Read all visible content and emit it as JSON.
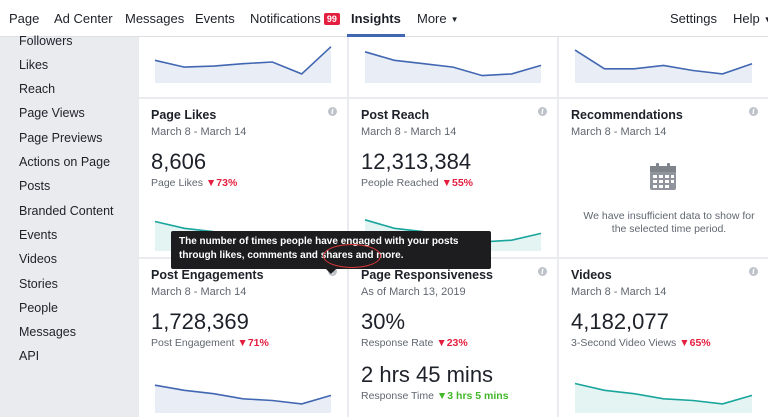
{
  "nav": {
    "items": [
      {
        "id": "page",
        "label": "Page"
      },
      {
        "id": "ad-center",
        "label": "Ad Center"
      },
      {
        "id": "messages",
        "label": "Messages"
      },
      {
        "id": "events",
        "label": "Events"
      },
      {
        "id": "notifications",
        "label": "Notifications",
        "badge": "99"
      },
      {
        "id": "insights",
        "label": "Insights",
        "active": true
      },
      {
        "id": "more",
        "label": "More"
      }
    ],
    "right": [
      {
        "id": "settings",
        "label": "Settings"
      },
      {
        "id": "help",
        "label": "Help"
      }
    ],
    "accent": "#4267b2"
  },
  "sidebar": {
    "items": [
      "Followers",
      "Likes",
      "Reach",
      "Page Views",
      "Page Previews",
      "Actions on Page",
      "Posts",
      "Branded Content",
      "Events",
      "Videos",
      "Stories",
      "People",
      "Messages",
      "API"
    ]
  },
  "cards": {
    "page_likes": {
      "title": "Page Likes",
      "date": "March 8 - March 14",
      "value": "8,606",
      "metric": "Page Likes",
      "change": "73%",
      "direction": "down"
    },
    "post_reach": {
      "title": "Post Reach",
      "date": "March 8 - March 14",
      "value": "12,313,384",
      "metric": "People Reached",
      "change": "55%",
      "direction": "down"
    },
    "recommendations": {
      "title": "Recommendations",
      "date": "March 8 - March 14",
      "message_line1": "We have insufficient data to show for",
      "message_line2": "the selected time period.",
      "icon": "calendar-icon"
    },
    "post_engagements": {
      "title": "Post Engagements",
      "date": "March 8 - March 14",
      "value": "1,728,369",
      "metric": "Post Engagement",
      "change": "71%",
      "direction": "down"
    },
    "page_responsiveness": {
      "title": "Page Responsiveness",
      "date": "As of March 13, 2019",
      "value": "30%",
      "metric": "Response Rate",
      "change": "23%",
      "direction": "down",
      "value2": "2 hrs 45 mins",
      "metric2": "Response Time",
      "change2": "3 hrs 5 mins",
      "direction2": "up"
    },
    "videos": {
      "title": "Videos",
      "date": "March 8 - March 14",
      "value": "4,182,077",
      "metric": "3-Second Video Views",
      "change": "65%",
      "direction": "down"
    }
  },
  "tooltip": {
    "line1": "The number of times people have engaged with your posts",
    "line2": "through likes, comments and shares and more."
  },
  "colors": {
    "blue_line": "#4267b2",
    "teal_line": "#19a59c",
    "down": "#e41e3f",
    "up": "#42b72a",
    "annotation": "#d93838"
  },
  "sparklines": {
    "top_left": [
      0.55,
      0.35,
      0.38,
      0.45,
      0.5,
      0.15,
      0.95
    ],
    "top_middle": [
      0.8,
      0.55,
      0.45,
      0.35,
      0.1,
      0.15,
      0.4
    ],
    "top_right": [
      0.85,
      0.3,
      0.3,
      0.4,
      0.25,
      0.15,
      0.45
    ],
    "page_likes": [
      0.75,
      0.55,
      0.45,
      0.3,
      0.25,
      0.15,
      0.4
    ],
    "post_reach": [
      0.8,
      0.55,
      0.45,
      0.35,
      0.15,
      0.2,
      0.4
    ],
    "post_engagements": [
      0.7,
      0.55,
      0.45,
      0.3,
      0.25,
      0.15,
      0.4
    ],
    "page_responsiveness": [],
    "videos": [
      0.75,
      0.55,
      0.45,
      0.3,
      0.25,
      0.15,
      0.4
    ]
  }
}
